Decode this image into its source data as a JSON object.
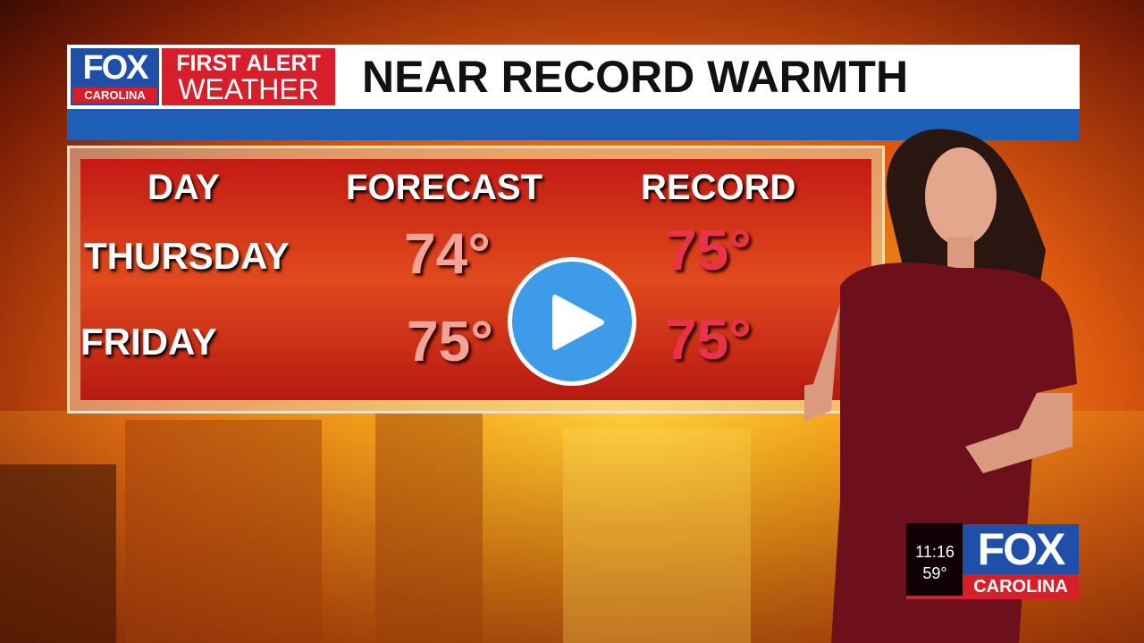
{
  "header": {
    "logo_brand": "FOX",
    "logo_station": "CAROLINA",
    "segment_line1": "FIRST ALERT",
    "segment_line2": "WEATHER",
    "title": "NEAR RECORD WARMTH"
  },
  "table": {
    "columns": [
      "DAY",
      "FORECAST",
      "RECORD"
    ],
    "rows": [
      {
        "day": "THURSDAY",
        "forecast": "74°",
        "record": "75°"
      },
      {
        "day": "FRIDAY",
        "forecast": "75°",
        "record": "75°"
      }
    ]
  },
  "bug": {
    "time": "11:16",
    "temp": "59°",
    "brand": "FOX",
    "station": "CAROLINA"
  },
  "player": {
    "play_icon": "play-icon",
    "accent": "#3d9be9"
  },
  "colors": {
    "fox_blue": "#1f4fa8",
    "fox_red": "#d81e2a",
    "bar_blue": "#1d5fb4"
  }
}
